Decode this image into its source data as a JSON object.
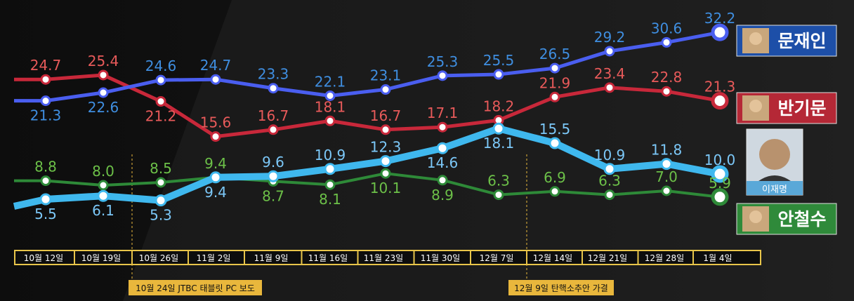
{
  "chart_data": {
    "type": "line",
    "categories": [
      "10월 12일",
      "10월 19일",
      "10월 26일",
      "11월 2일",
      "11월 9일",
      "11월 16일",
      "11월 23일",
      "11월 30일",
      "12월 7일",
      "12월 14일",
      "12월 21일",
      "12월 28일",
      "1월 4일"
    ],
    "series": [
      {
        "name": "문재인",
        "color": "#4a5ef0",
        "label_color": "#3f8ee0",
        "values": [
          21.3,
          22.6,
          24.6,
          24.7,
          23.3,
          22.1,
          23.1,
          25.3,
          25.5,
          26.5,
          29.2,
          30.6,
          32.2
        ]
      },
      {
        "name": "반기문",
        "color": "#c8283a",
        "label_color": "#e85a5a",
        "values": [
          24.7,
          25.4,
          21.2,
          15.6,
          16.7,
          18.1,
          16.7,
          17.1,
          18.2,
          21.9,
          23.4,
          22.8,
          21.3
        ]
      },
      {
        "name": "이재명",
        "color": "#3fb8ee",
        "label_color": "#7cc8f8",
        "values": [
          5.5,
          6.1,
          5.3,
          9.4,
          9.6,
          10.9,
          12.3,
          14.6,
          18.1,
          15.5,
          10.9,
          11.8,
          10.0
        ]
      },
      {
        "name": "안철수",
        "color": "#2e8a38",
        "label_color": "#6cc048",
        "values": [
          8.8,
          8.0,
          8.5,
          9.4,
          8.7,
          8.1,
          10.1,
          8.9,
          6.3,
          6.9,
          6.3,
          7.0,
          5.9
        ]
      }
    ],
    "annotations": [
      {
        "text": "10월 24일 JTBC 태블릿 PC 보도",
        "after_index": 1
      },
      {
        "text": "12월 9일 탄핵소추안 가결",
        "after_index": 8
      }
    ],
    "grid": false,
    "legend_placement": "right"
  },
  "colors": {
    "background": "#0b0b0b",
    "axis_bar": "#e8c54a",
    "note_box": "#e9b73c"
  }
}
